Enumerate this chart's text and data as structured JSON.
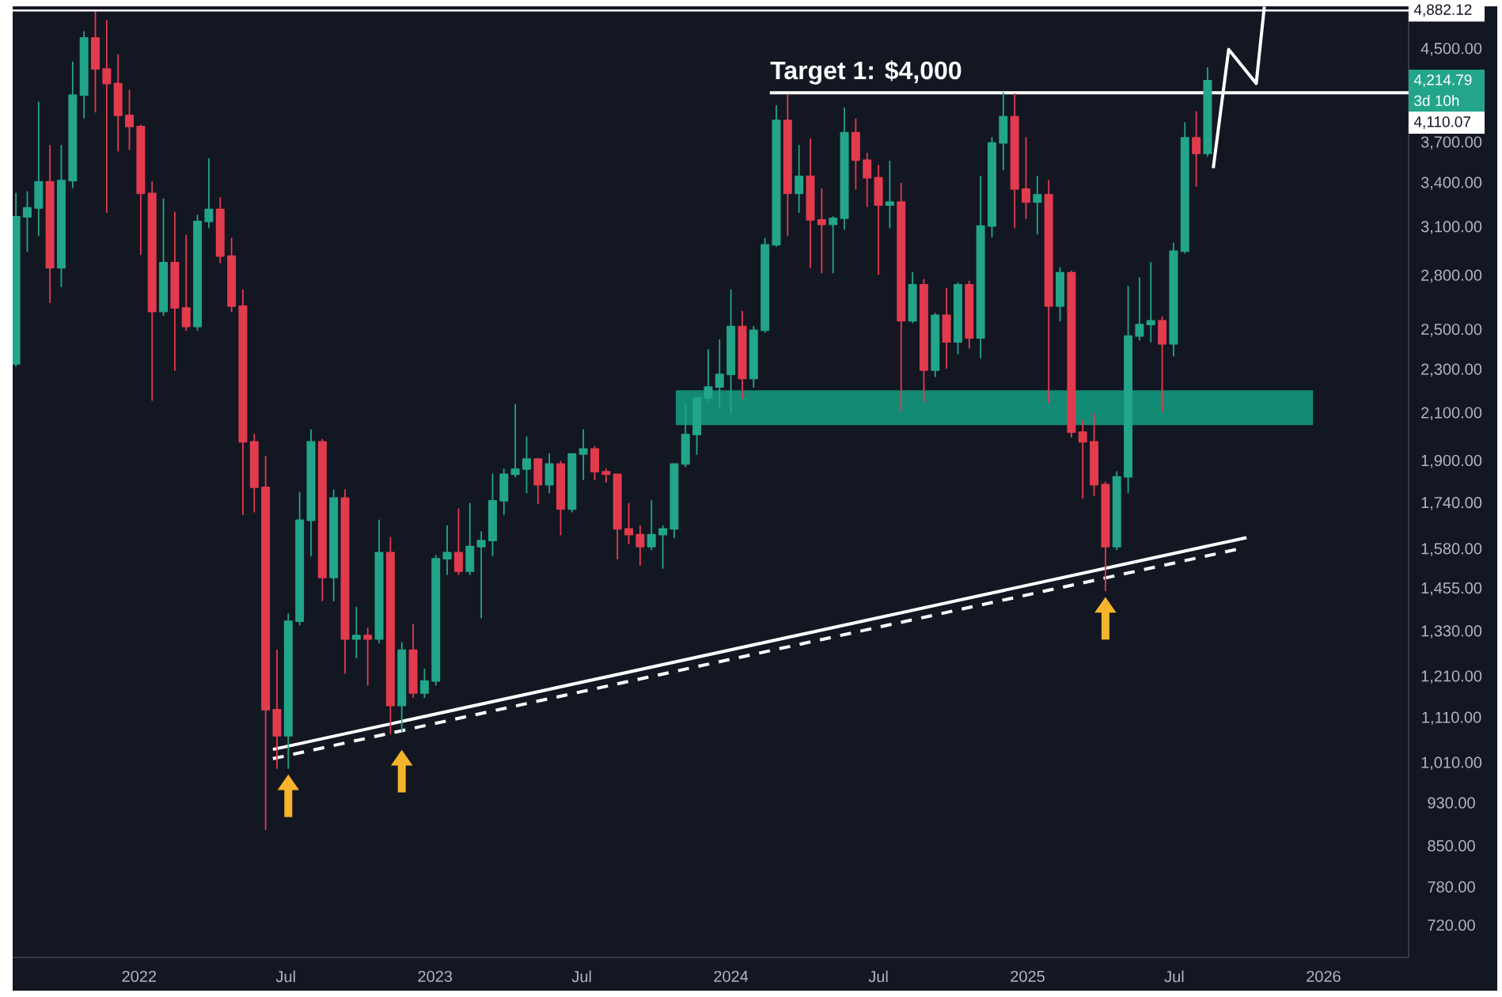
{
  "chart_data": {
    "type": "candlestick",
    "log": true,
    "xlim": [
      "2021-07-29",
      "2026-04-16"
    ],
    "ylim": [
      673,
      4925
    ],
    "xticks": [
      "2022",
      {
        "value": "2022-07",
        "label": "Jul"
      },
      "2023",
      {
        "value": "2023-07",
        "label": "Jul"
      },
      "2024",
      {
        "value": "2024-07",
        "label": "Jul"
      },
      "2025",
      {
        "value": "2025-07",
        "label": "Jul"
      },
      "2026"
    ],
    "yticks": [
      {
        "value": 720,
        "label": "720.00"
      },
      {
        "value": 780,
        "label": "780.00"
      },
      {
        "value": 850,
        "label": "850.00"
      },
      {
        "value": 930,
        "label": "930.00"
      },
      {
        "value": 1010,
        "label": "1,010.00"
      },
      {
        "value": 1110,
        "label": "1,110.00"
      },
      {
        "value": 1210,
        "label": "1,210.00"
      },
      {
        "value": 1330,
        "label": "1,330.00"
      },
      {
        "value": 1455,
        "label": "1,455.00"
      },
      {
        "value": 1580,
        "label": "1,580.00"
      },
      {
        "value": 1740,
        "label": "1,740.00"
      },
      {
        "value": 1900,
        "label": "1,900.00"
      },
      {
        "value": 2100,
        "label": "2,100.00"
      },
      {
        "value": 2300,
        "label": "2,300.00"
      },
      {
        "value": 2500,
        "label": "2,500.00"
      },
      {
        "value": 2800,
        "label": "2,800.00"
      },
      {
        "value": 3100,
        "label": "3,100.00"
      },
      {
        "value": 3400,
        "label": "3,400.00"
      },
      {
        "value": 3700,
        "label": "3,700.00"
      },
      {
        "value": 4500,
        "label": "4,500.00"
      }
    ],
    "series": [
      {
        "x": [
          "2021-08-02",
          "2021-08-16",
          "2021-08-30",
          "2021-09-13",
          "2021-09-27",
          "2021-10-11",
          "2021-10-25",
          "2021-11-08",
          "2021-11-22",
          "2021-12-06",
          "2021-12-20",
          "2022-01-03",
          "2022-01-17",
          "2022-01-31",
          "2022-02-14",
          "2022-02-28",
          "2022-03-14",
          "2022-03-28",
          "2022-04-11",
          "2022-04-25",
          "2022-05-09",
          "2022-05-23",
          "2022-06-06",
          "2022-06-20",
          "2022-07-04",
          "2022-07-18",
          "2022-08-01",
          "2022-08-15",
          "2022-08-29",
          "2022-09-12",
          "2022-09-26",
          "2022-10-10",
          "2022-10-24",
          "2022-11-07",
          "2022-11-21",
          "2022-12-05",
          "2022-12-19",
          "2023-01-02",
          "2023-01-16",
          "2023-01-30",
          "2023-02-13",
          "2023-02-27",
          "2023-03-13",
          "2023-03-27",
          "2023-04-10",
          "2023-04-24",
          "2023-05-08",
          "2023-05-22",
          "2023-06-05",
          "2023-06-19",
          "2023-07-03",
          "2023-07-17",
          "2023-07-31",
          "2023-08-14",
          "2023-08-28",
          "2023-09-11",
          "2023-09-25",
          "2023-10-09",
          "2023-10-23",
          "2023-11-06",
          "2023-11-20",
          "2023-12-04",
          "2023-12-18",
          "2024-01-01",
          "2024-01-15",
          "2024-01-29",
          "2024-02-12",
          "2024-02-26",
          "2024-03-11",
          "2024-03-25",
          "2024-04-08",
          "2024-04-22",
          "2024-05-06",
          "2024-05-20",
          "2024-06-03",
          "2024-06-17",
          "2024-07-01",
          "2024-07-15",
          "2024-07-29",
          "2024-08-12",
          "2024-08-26",
          "2024-09-09",
          "2024-09-23",
          "2024-10-07",
          "2024-10-21",
          "2024-11-04",
          "2024-11-18",
          "2024-12-02",
          "2024-12-16",
          "2024-12-30",
          "2025-01-13",
          "2025-01-27",
          "2025-02-10",
          "2025-02-24",
          "2025-03-10",
          "2025-03-24",
          "2025-04-07",
          "2025-04-21",
          "2025-05-05",
          "2025-05-19",
          "2025-06-02",
          "2025-06-16",
          "2025-06-30",
          "2025-07-14",
          "2025-07-28",
          "2025-08-11"
        ],
        "ohlc": [
          [
            2330,
            3330,
            2320,
            3170
          ],
          [
            3170,
            3340,
            2950,
            3230
          ],
          [
            3230,
            4030,
            3050,
            3410
          ],
          [
            3410,
            3680,
            2650,
            2850
          ],
          [
            2850,
            3680,
            2740,
            3420
          ],
          [
            3420,
            4380,
            3370,
            4090
          ],
          [
            4090,
            4670,
            3900,
            4610
          ],
          [
            4610,
            4870,
            3950,
            4320
          ],
          [
            4320,
            4780,
            3200,
            4190
          ],
          [
            4190,
            4450,
            3640,
            3920
          ],
          [
            3920,
            4130,
            3650,
            3830
          ],
          [
            3830,
            3840,
            2930,
            3330
          ],
          [
            3330,
            3410,
            2160,
            2600
          ],
          [
            2600,
            3290,
            2580,
            2880
          ],
          [
            2880,
            3200,
            2300,
            2620
          ],
          [
            2620,
            3050,
            2500,
            2520
          ],
          [
            2520,
            3180,
            2500,
            3140
          ],
          [
            3140,
            3580,
            3100,
            3220
          ],
          [
            3220,
            3300,
            2880,
            2920
          ],
          [
            2920,
            3030,
            2600,
            2630
          ],
          [
            2630,
            2720,
            1700,
            1980
          ],
          [
            1980,
            2010,
            1710,
            1800
          ],
          [
            1800,
            1920,
            880,
            1130
          ],
          [
            1130,
            1280,
            1000,
            1070
          ],
          [
            1070,
            1380,
            1000,
            1360
          ],
          [
            1360,
            1780,
            1350,
            1680
          ],
          [
            1680,
            2030,
            1560,
            1980
          ],
          [
            1980,
            1990,
            1420,
            1490
          ],
          [
            1490,
            1790,
            1420,
            1760
          ],
          [
            1760,
            1790,
            1220,
            1310
          ],
          [
            1310,
            1400,
            1260,
            1320
          ],
          [
            1320,
            1340,
            1190,
            1310
          ],
          [
            1310,
            1680,
            1300,
            1570
          ],
          [
            1570,
            1620,
            1075,
            1140
          ],
          [
            1140,
            1300,
            1080,
            1280
          ],
          [
            1280,
            1350,
            1160,
            1170
          ],
          [
            1170,
            1230,
            1160,
            1200
          ],
          [
            1200,
            1560,
            1190,
            1550
          ],
          [
            1550,
            1660,
            1500,
            1570
          ],
          [
            1570,
            1720,
            1500,
            1510
          ],
          [
            1510,
            1740,
            1500,
            1590
          ],
          [
            1590,
            1640,
            1370,
            1610
          ],
          [
            1610,
            1850,
            1560,
            1750
          ],
          [
            1750,
            1870,
            1700,
            1850
          ],
          [
            1850,
            2140,
            1840,
            1870
          ],
          [
            1870,
            2000,
            1780,
            1910
          ],
          [
            1910,
            1910,
            1740,
            1810
          ],
          [
            1810,
            1930,
            1780,
            1890
          ],
          [
            1890,
            1900,
            1630,
            1720
          ],
          [
            1720,
            1930,
            1710,
            1930
          ],
          [
            1930,
            2030,
            1830,
            1950
          ],
          [
            1950,
            1960,
            1830,
            1860
          ],
          [
            1860,
            1870,
            1820,
            1850
          ],
          [
            1850,
            1850,
            1550,
            1650
          ],
          [
            1650,
            1740,
            1600,
            1630
          ],
          [
            1630,
            1660,
            1530,
            1590
          ],
          [
            1590,
            1750,
            1580,
            1630
          ],
          [
            1630,
            1660,
            1520,
            1650
          ],
          [
            1650,
            1890,
            1620,
            1890
          ],
          [
            1890,
            2140,
            1880,
            2010
          ],
          [
            2010,
            2170,
            1930,
            2170
          ],
          [
            2170,
            2400,
            2150,
            2220
          ],
          [
            2220,
            2450,
            2130,
            2280
          ],
          [
            2280,
            2720,
            2100,
            2520
          ],
          [
            2520,
            2600,
            2170,
            2260
          ],
          [
            2260,
            2520,
            2220,
            2500
          ],
          [
            2500,
            3030,
            2490,
            2990
          ],
          [
            2990,
            4000,
            2980,
            3880
          ],
          [
            3880,
            4090,
            3050,
            3330
          ],
          [
            3330,
            3680,
            3200,
            3450
          ],
          [
            3450,
            3730,
            2850,
            3150
          ],
          [
            3150,
            3360,
            2820,
            3120
          ],
          [
            3120,
            3170,
            2820,
            3160
          ],
          [
            3160,
            3980,
            3090,
            3780
          ],
          [
            3780,
            3890,
            3360,
            3570
          ],
          [
            3570,
            3620,
            3240,
            3440
          ],
          [
            3440,
            3530,
            2810,
            3250
          ],
          [
            3250,
            3560,
            3100,
            3270
          ],
          [
            3270,
            3400,
            2110,
            2550
          ],
          [
            2550,
            2820,
            2540,
            2750
          ],
          [
            2750,
            2780,
            2150,
            2300
          ],
          [
            2300,
            2590,
            2270,
            2580
          ],
          [
            2580,
            2730,
            2310,
            2440
          ],
          [
            2440,
            2760,
            2380,
            2750
          ],
          [
            2750,
            2770,
            2410,
            2460
          ],
          [
            2460,
            3450,
            2360,
            3110
          ],
          [
            3110,
            3740,
            3040,
            3700
          ],
          [
            3700,
            4110,
            3500,
            3910
          ],
          [
            3910,
            4100,
            3100,
            3360
          ],
          [
            3360,
            3740,
            3160,
            3270
          ],
          [
            3270,
            3450,
            3060,
            3320
          ],
          [
            3320,
            3420,
            2150,
            2630
          ],
          [
            2630,
            2850,
            2550,
            2820
          ],
          [
            2820,
            2830,
            2000,
            2020
          ],
          [
            2020,
            2070,
            1760,
            1980
          ],
          [
            1980,
            2100,
            1770,
            1810
          ],
          [
            1810,
            1820,
            1450,
            1590
          ],
          [
            1590,
            1860,
            1580,
            1840
          ],
          [
            1840,
            2740,
            1780,
            2470
          ],
          [
            2470,
            2790,
            2450,
            2530
          ],
          [
            2530,
            2880,
            2440,
            2550
          ],
          [
            2550,
            2570,
            2110,
            2430
          ],
          [
            2430,
            3000,
            2370,
            2950
          ],
          [
            2950,
            3860,
            2940,
            3740
          ],
          [
            3740,
            3950,
            3380,
            3620
          ],
          [
            3620,
            4330,
            3600,
            4214.79
          ]
        ],
        "colors": [
          "#22a58a",
          "#22a58a",
          "#22a58a",
          "#e23b4e",
          "#22a58a",
          "#22a58a",
          "#22a58a",
          "#e23b4e",
          "#e23b4e",
          "#e23b4e",
          "#e23b4e",
          "#e23b4e",
          "#e23b4e",
          "#22a58a",
          "#e23b4e",
          "#e23b4e",
          "#22a58a",
          "#22a58a",
          "#e23b4e",
          "#e23b4e",
          "#e23b4e",
          "#e23b4e",
          "#e23b4e",
          "#e23b4e",
          "#22a58a",
          "#22a58a",
          "#22a58a",
          "#e23b4e",
          "#22a58a",
          "#e23b4e",
          "#22a58a",
          "#e23b4e",
          "#22a58a",
          "#e23b4e",
          "#22a58a",
          "#e23b4e",
          "#22a58a",
          "#22a58a",
          "#22a58a",
          "#e23b4e",
          "#22a58a",
          "#22a58a",
          "#22a58a",
          "#22a58a",
          "#22a58a",
          "#22a58a",
          "#e23b4e",
          "#22a58a",
          "#e23b4e",
          "#22a58a",
          "#22a58a",
          "#e23b4e",
          "#e23b4e",
          "#e23b4e",
          "#e23b4e",
          "#e23b4e",
          "#22a58a",
          "#22a58a",
          "#22a58a",
          "#22a58a",
          "#22a58a",
          "#22a58a",
          "#22a58a",
          "#22a58a",
          "#e23b4e",
          "#22a58a",
          "#22a58a",
          "#22a58a",
          "#e23b4e",
          "#22a58a",
          "#e23b4e",
          "#e23b4e",
          "#22a58a",
          "#22a58a",
          "#e23b4e",
          "#e23b4e",
          "#e23b4e",
          "#22a58a",
          "#e23b4e",
          "#22a58a",
          "#e23b4e",
          "#22a58a",
          "#e23b4e",
          "#22a58a",
          "#e23b4e",
          "#22a58a",
          "#22a58a",
          "#22a58a",
          "#e23b4e",
          "#e23b4e",
          "#22a58a",
          "#e23b4e",
          "#22a58a",
          "#e23b4e",
          "#e23b4e",
          "#e23b4e",
          "#e23b4e",
          "#22a58a",
          "#22a58a",
          "#22a58a",
          "#22a58a",
          "#e23b4e",
          "#22a58a",
          "#22a58a",
          "#e23b4e",
          "#22a58a"
        ]
      },
      {
        "type": "line",
        "x": [
          "2023-10-25",
          "2025-12-19"
        ],
        "values": [
          null,
          null
        ],
        "lower": [
          2050,
          2050
        ],
        "upper": [
          2205,
          2205
        ],
        "color": "#138a74"
      },
      {
        "type": "line",
        "x": [
          "2022-06-15",
          "2025-09-28"
        ],
        "values": [
          1040,
          1620
        ],
        "color": "#ffffff",
        "line_style": "solid"
      },
      {
        "type": "line",
        "x": [
          "2022-06-15",
          "2025-09-15"
        ],
        "values": [
          1020,
          1580
        ],
        "color": "#ffffff",
        "line_style": "dashed"
      },
      {
        "type": "line",
        "x": [
          "2024-02-18",
          "2026-04-16"
        ],
        "values": [
          4110.07,
          4110.07
        ],
        "color": "#ffffff",
        "line_style": "solid"
      },
      {
        "type": "line",
        "x": [
          "2025-08-18",
          "2025-09-06",
          "2025-10-10",
          "2025-10-20"
        ],
        "values": [
          3510,
          4500,
          4190,
          4920
        ],
        "color": "#ffffff",
        "line_style": "solid"
      }
    ],
    "ref_lines": [
      {
        "axis": "y",
        "value": 4882.12,
        "label": "4,882.12",
        "color": "#ffffff"
      }
    ],
    "annotations": [
      {
        "text": "Target 1: $4,000",
        "x": "2024-02-18",
        "y": 4110.07
      },
      "4,214.79",
      "3d 10h",
      "4,110.07"
    ]
  }
}
